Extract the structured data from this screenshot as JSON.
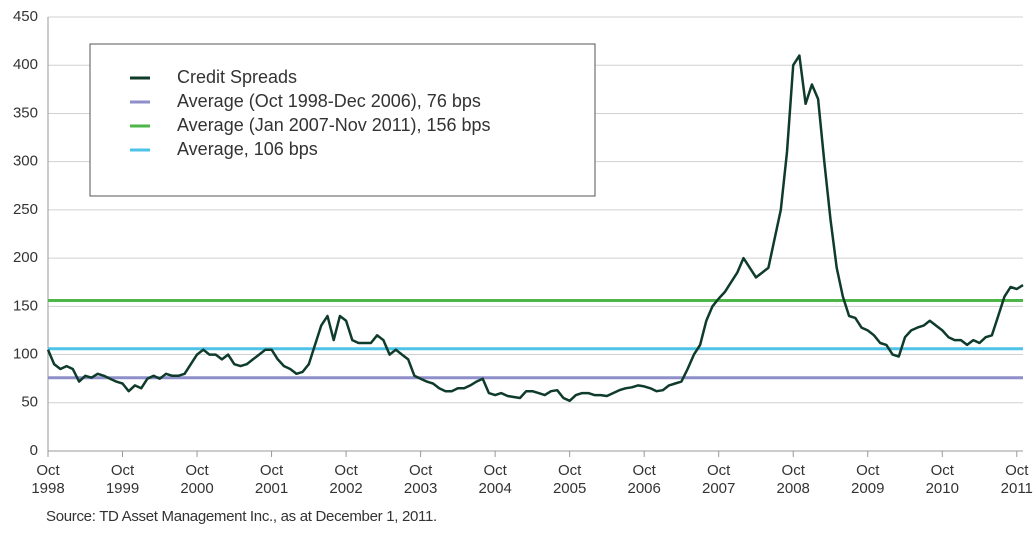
{
  "chart_data": {
    "type": "line",
    "x": [
      "1998-10",
      "1998-11",
      "1998-12",
      "1999-01",
      "1999-02",
      "1999-03",
      "1999-04",
      "1999-05",
      "1999-06",
      "1999-07",
      "1999-08",
      "1999-09",
      "1999-10",
      "1999-11",
      "1999-12",
      "2000-01",
      "2000-02",
      "2000-03",
      "2000-04",
      "2000-05",
      "2000-06",
      "2000-07",
      "2000-08",
      "2000-09",
      "2000-10",
      "2000-11",
      "2000-12",
      "2001-01",
      "2001-02",
      "2001-03",
      "2001-04",
      "2001-05",
      "2001-06",
      "2001-07",
      "2001-08",
      "2001-09",
      "2001-10",
      "2001-11",
      "2001-12",
      "2002-01",
      "2002-02",
      "2002-03",
      "2002-04",
      "2002-05",
      "2002-06",
      "2002-07",
      "2002-08",
      "2002-09",
      "2002-10",
      "2002-11",
      "2002-12",
      "2003-01",
      "2003-02",
      "2003-03",
      "2003-04",
      "2003-05",
      "2003-06",
      "2003-07",
      "2003-08",
      "2003-09",
      "2003-10",
      "2003-11",
      "2003-12",
      "2004-01",
      "2004-02",
      "2004-03",
      "2004-04",
      "2004-05",
      "2004-06",
      "2004-07",
      "2004-08",
      "2004-09",
      "2004-10",
      "2004-11",
      "2004-12",
      "2005-01",
      "2005-02",
      "2005-03",
      "2005-04",
      "2005-05",
      "2005-06",
      "2005-07",
      "2005-08",
      "2005-09",
      "2005-10",
      "2005-11",
      "2005-12",
      "2006-01",
      "2006-02",
      "2006-03",
      "2006-04",
      "2006-05",
      "2006-06",
      "2006-07",
      "2006-08",
      "2006-09",
      "2006-10",
      "2006-11",
      "2006-12",
      "2007-01",
      "2007-02",
      "2007-03",
      "2007-04",
      "2007-05",
      "2007-06",
      "2007-07",
      "2007-08",
      "2007-09",
      "2007-10",
      "2007-11",
      "2007-12",
      "2008-01",
      "2008-02",
      "2008-03",
      "2008-04",
      "2008-05",
      "2008-06",
      "2008-07",
      "2008-08",
      "2008-09",
      "2008-10",
      "2008-11",
      "2008-12",
      "2009-01",
      "2009-02",
      "2009-03",
      "2009-04",
      "2009-05",
      "2009-06",
      "2009-07",
      "2009-08",
      "2009-09",
      "2009-10",
      "2009-11",
      "2009-12",
      "2010-01",
      "2010-02",
      "2010-03",
      "2010-04",
      "2010-05",
      "2010-06",
      "2010-07",
      "2010-08",
      "2010-09",
      "2010-10",
      "2010-11",
      "2010-12",
      "2011-01",
      "2011-02",
      "2011-03",
      "2011-04",
      "2011-05",
      "2011-06",
      "2011-07",
      "2011-08",
      "2011-09",
      "2011-10",
      "2011-11"
    ],
    "series": [
      {
        "name": "Credit Spreads",
        "color": "#0f3b2a",
        "values": [
          105,
          90,
          85,
          88,
          85,
          72,
          78,
          76,
          80,
          78,
          75,
          72,
          70,
          62,
          68,
          65,
          75,
          78,
          75,
          80,
          78,
          78,
          80,
          90,
          100,
          105,
          100,
          100,
          95,
          100,
          90,
          88,
          90,
          95,
          100,
          105,
          105,
          95,
          88,
          85,
          80,
          82,
          90,
          110,
          130,
          140,
          115,
          140,
          135,
          115,
          112,
          112,
          112,
          120,
          115,
          100,
          105,
          100,
          95,
          78,
          75,
          72,
          70,
          65,
          62,
          62,
          65,
          65,
          68,
          72,
          75,
          60,
          58,
          60,
          57,
          56,
          55,
          62,
          62,
          60,
          58,
          62,
          63,
          55,
          52,
          58,
          60,
          60,
          58,
          58,
          57,
          60,
          63,
          65,
          66,
          68,
          67,
          65,
          62,
          63,
          68,
          70,
          72,
          85,
          100,
          110,
          135,
          150,
          158,
          165,
          175,
          185,
          200,
          190,
          180,
          185,
          190,
          220,
          250,
          310,
          400,
          410,
          360,
          380,
          365,
          300,
          240,
          190,
          160,
          140,
          138,
          128,
          125,
          120,
          112,
          110,
          100,
          98,
          118,
          125,
          128,
          130,
          135,
          130,
          125,
          118,
          115,
          115,
          110,
          115,
          112,
          118,
          120,
          140,
          160,
          170,
          168,
          172
        ]
      }
    ],
    "reference_lines": [
      {
        "name": "Average (Oct 1998-Dec 2006), 76 bps",
        "value": 76,
        "color": "#8e8fc9"
      },
      {
        "name": "Average (Jan 2007-Nov 2011), 156 bps",
        "value": 156,
        "color": "#4cb748"
      },
      {
        "name": "Average, 106 bps",
        "value": 106,
        "color": "#4ec3e8"
      }
    ],
    "xlim": [
      "1998-10",
      "2011-11"
    ],
    "xticks": [
      {
        "value": "1998-10",
        "label": "Oct 1998"
      },
      {
        "value": "1999-10",
        "label": "Oct 1999"
      },
      {
        "value": "2000-10",
        "label": "Oct 2000"
      },
      {
        "value": "2001-10",
        "label": "Oct 2001"
      },
      {
        "value": "2002-10",
        "label": "Oct 2002"
      },
      {
        "value": "2003-10",
        "label": "Oct 2003"
      },
      {
        "value": "2004-10",
        "label": "Oct 2004"
      },
      {
        "value": "2005-10",
        "label": "Oct 2005"
      },
      {
        "value": "2006-10",
        "label": "Oct 2006"
      },
      {
        "value": "2007-10",
        "label": "Oct 2007"
      },
      {
        "value": "2008-10",
        "label": "Oct 2008"
      },
      {
        "value": "2009-10",
        "label": "Oct 2009"
      },
      {
        "value": "2010-10",
        "label": "Oct 2010"
      },
      {
        "value": "2011-10",
        "label": "Oct 2011"
      }
    ],
    "ylim": [
      0,
      450
    ],
    "yticks": [
      0,
      50,
      100,
      150,
      200,
      250,
      300,
      350,
      400,
      450
    ],
    "grid": true,
    "legend_position": "upper-left",
    "source": "Source: TD Asset Management Inc., as at December 1, 2011."
  }
}
